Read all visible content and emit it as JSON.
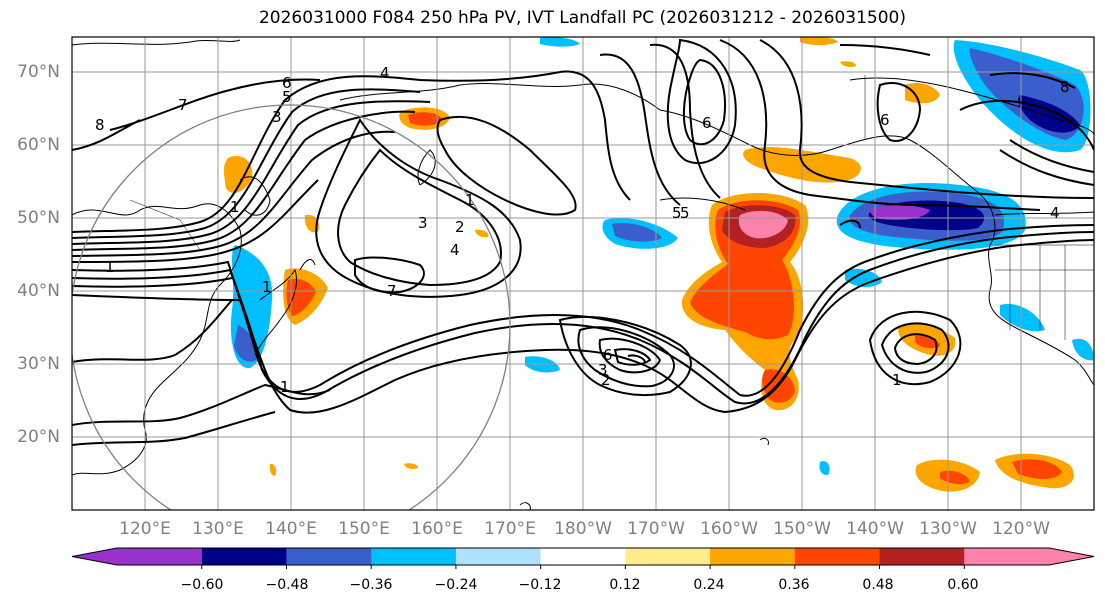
{
  "title": "2026031000 F084 250 hPa PV, IVT Landfall PC (2026031212 - 2026031500)",
  "lat_labels": [
    "70°N",
    "60°N",
    "50°N",
    "40°N",
    "30°N",
    "20°N"
  ],
  "lon_labels": [
    "120°E",
    "130°E",
    "140°E",
    "150°E",
    "160°E",
    "170°E",
    "180°W",
    "170°W",
    "160°W",
    "150°W",
    "140°W",
    "130°W",
    "120°W"
  ],
  "contour_labels": [
    "8",
    "7",
    "6",
    "5",
    "4",
    "3",
    "1",
    "2",
    "3",
    "1",
    "7",
    "1",
    "1",
    "2",
    "3",
    "4",
    "5",
    "6",
    "1",
    "6",
    "5",
    "4",
    "1",
    "8",
    "6"
  ],
  "colorbar": {
    "colors": [
      "#9932cc",
      "#00008b",
      "#3a5fcd",
      "#00bfff",
      "#b0e2ff",
      "#ffffff",
      "#ffec8b",
      "#ffa500",
      "#ff4500",
      "#b22222",
      "#ff82ab"
    ],
    "tick_labels": [
      "−0.60",
      "−0.48",
      "−0.36",
      "−0.24",
      "−0.12",
      "0.12",
      "0.24",
      "0.36",
      "0.48",
      "0.60"
    ]
  }
}
